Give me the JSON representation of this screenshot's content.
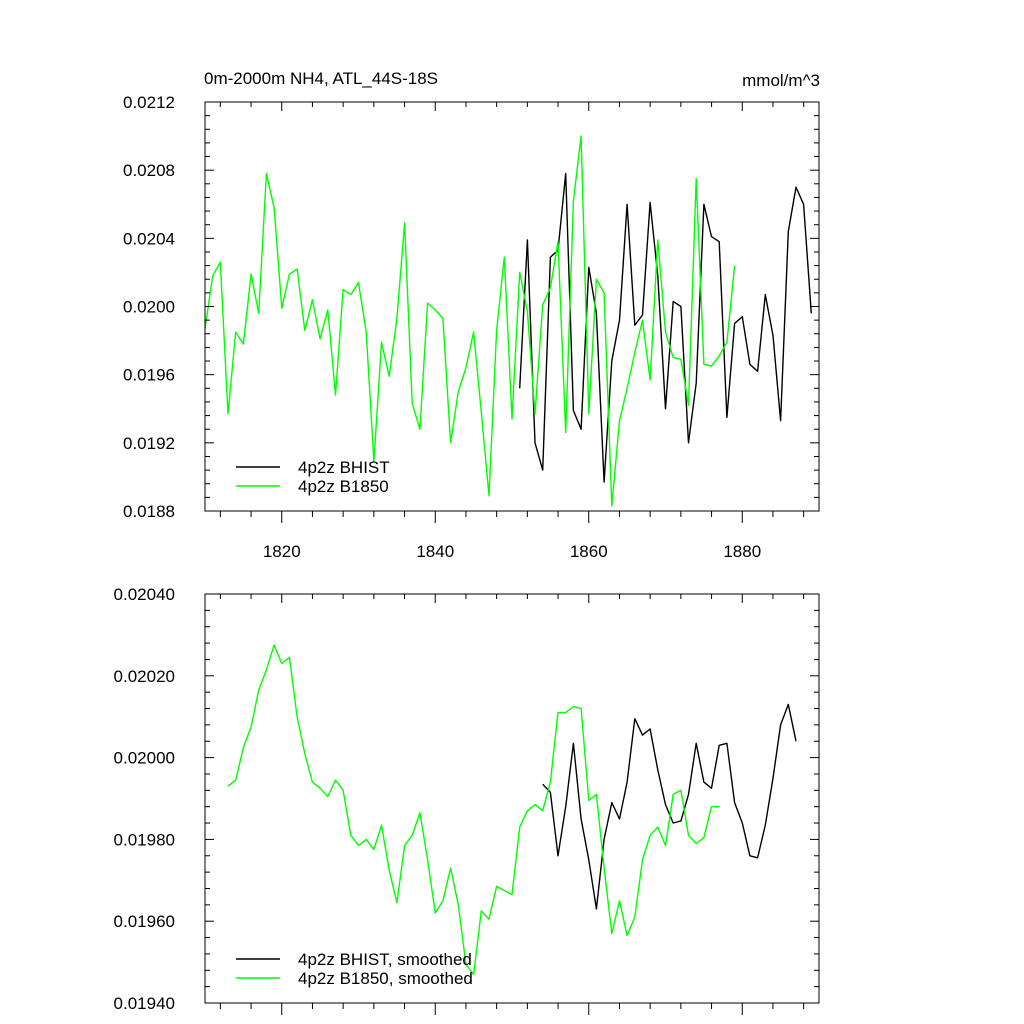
{
  "colors": {
    "bhist": "#000000",
    "b1850": "#00ff00",
    "frame": "#000000"
  },
  "chart_data": [
    {
      "type": "line",
      "title": "0m-2000m NH4, ATL_44S-18S",
      "units": "mmol/m^3",
      "xlim": [
        1810,
        1890
      ],
      "ylim": [
        0.0188,
        0.0212
      ],
      "xticks": [
        1820,
        1840,
        1860,
        1880
      ],
      "xtick_labels": [
        "1820",
        "1840",
        "1860",
        "1880"
      ],
      "yticks": [
        0.0188,
        0.0192,
        0.0196,
        0.02,
        0.0204,
        0.0208,
        0.0212
      ],
      "ytick_labels": [
        "0.0188",
        "0.0192",
        "0.0196",
        "0.0200",
        "0.0204",
        "0.0208",
        "0.0212"
      ],
      "legend_position": "bottom-left",
      "series": [
        {
          "name": "4p2z BHIST",
          "color": "#000000",
          "x": [
            1851,
            1852,
            1853,
            1854,
            1855,
            1856,
            1857,
            1858,
            1859,
            1860,
            1861,
            1862,
            1863,
            1864,
            1865,
            1866,
            1867,
            1868,
            1869,
            1870,
            1871,
            1872,
            1873,
            1874,
            1875,
            1876,
            1877,
            1878,
            1879,
            1880,
            1881,
            1882,
            1883,
            1884,
            1885,
            1886,
            1887,
            1888,
            1889
          ],
          "y": [
            0.01952,
            0.02039,
            0.0192,
            0.01904,
            0.02029,
            0.02033,
            0.02078,
            0.01939,
            0.01928,
            0.02023,
            0.01996,
            0.01897,
            0.01968,
            0.01992,
            0.0206,
            0.01989,
            0.01995,
            0.02061,
            0.02018,
            0.0194,
            0.02003,
            0.02,
            0.0192,
            0.01955,
            0.0206,
            0.02041,
            0.02038,
            0.01935,
            0.0199,
            0.01994,
            0.01966,
            0.01962,
            0.02007,
            0.01983,
            0.01933,
            0.02044,
            0.0207,
            0.0206,
            0.01996
          ]
        },
        {
          "name": "4p2z B1850",
          "color": "#00ff00",
          "x": [
            1810,
            1811,
            1812,
            1813,
            1814,
            1815,
            1816,
            1817,
            1818,
            1819,
            1820,
            1821,
            1822,
            1823,
            1824,
            1825,
            1826,
            1827,
            1828,
            1829,
            1830,
            1831,
            1832,
            1833,
            1834,
            1835,
            1836,
            1837,
            1838,
            1839,
            1840,
            1841,
            1842,
            1843,
            1844,
            1845,
            1846,
            1847,
            1848,
            1849,
            1850,
            1851,
            1852,
            1853,
            1854,
            1855,
            1856,
            1857,
            1858,
            1859,
            1860,
            1861,
            1862,
            1863,
            1864,
            1865,
            1866,
            1867,
            1868,
            1869,
            1870,
            1871,
            1872,
            1873,
            1874,
            1875,
            1876,
            1877,
            1878,
            1879
          ],
          "y": [
            0.01987,
            0.02018,
            0.02026,
            0.01937,
            0.01985,
            0.01978,
            0.02019,
            0.01996,
            0.02078,
            0.02058,
            0.01999,
            0.02019,
            0.02022,
            0.01986,
            0.02004,
            0.01981,
            0.01998,
            0.01948,
            0.0201,
            0.02007,
            0.02014,
            0.01985,
            0.01909,
            0.01979,
            0.01959,
            0.01993,
            0.02049,
            0.01943,
            0.01928,
            0.02002,
            0.01998,
            0.01993,
            0.0192,
            0.0195,
            0.01964,
            0.01985,
            0.01938,
            0.01889,
            0.01986,
            0.02029,
            0.01934,
            0.0202,
            0.01997,
            0.01937,
            0.02001,
            0.02011,
            0.02038,
            0.01926,
            0.02062,
            0.021,
            0.01937,
            0.02016,
            0.02008,
            0.01883,
            0.01933,
            0.01952,
            0.01973,
            0.01992,
            0.01957,
            0.02039,
            0.01985,
            0.0197,
            0.01969,
            0.01942,
            0.02075,
            0.01966,
            0.01965,
            0.01971,
            0.01979,
            0.02024
          ]
        }
      ]
    },
    {
      "type": "line",
      "title": "",
      "xlim": [
        1810,
        1890
      ],
      "ylim": [
        0.0194,
        0.0204
      ],
      "xticks": [
        1820,
        1840,
        1860,
        1880
      ],
      "xtick_labels": [],
      "yticks": [
        0.0194,
        0.0196,
        0.0198,
        0.02,
        0.0202,
        0.0204
      ],
      "ytick_labels": [
        "0.01940",
        "0.01960",
        "0.01980",
        "0.02000",
        "0.02020",
        "0.02040"
      ],
      "legend_position": "bottom-left",
      "series": [
        {
          "name": "4p2z BHIST, smoothed",
          "color": "#000000",
          "x": [
            1854,
            1855,
            1856,
            1857,
            1858,
            1859,
            1860,
            1861,
            1862,
            1863,
            1864,
            1865,
            1866,
            1867,
            1868,
            1869,
            1870,
            1871,
            1872,
            1873,
            1874,
            1875,
            1876,
            1877,
            1878,
            1879,
            1880,
            1881,
            1882,
            1883,
            1884,
            1885,
            1886,
            1887
          ],
          "y": [
            0.019935,
            0.019915,
            0.01976,
            0.01988,
            0.020035,
            0.01985,
            0.01975,
            0.01963,
            0.0198,
            0.01989,
            0.01985,
            0.01994,
            0.020095,
            0.020055,
            0.02007,
            0.01997,
            0.019885,
            0.01984,
            0.019845,
            0.01991,
            0.020035,
            0.01994,
            0.019925,
            0.02003,
            0.020035,
            0.01989,
            0.01984,
            0.01976,
            0.019755,
            0.019835,
            0.01995,
            0.02008,
            0.02013,
            0.02004
          ]
        },
        {
          "name": "4p2z B1850, smoothed",
          "color": "#00ff00",
          "x": [
            1813,
            1814,
            1815,
            1816,
            1817,
            1818,
            1819,
            1820,
            1821,
            1822,
            1823,
            1824,
            1825,
            1826,
            1827,
            1828,
            1829,
            1830,
            1831,
            1832,
            1833,
            1834,
            1835,
            1836,
            1837,
            1838,
            1839,
            1840,
            1841,
            1842,
            1843,
            1844,
            1845,
            1846,
            1847,
            1848,
            1849,
            1850,
            1851,
            1852,
            1853,
            1854,
            1855,
            1856,
            1857,
            1858,
            1859,
            1860,
            1861,
            1862,
            1863,
            1864,
            1865,
            1866,
            1867,
            1868,
            1869,
            1870,
            1871,
            1872,
            1873,
            1874,
            1875,
            1876,
            1877
          ],
          "y": [
            0.01993,
            0.019945,
            0.020025,
            0.020075,
            0.020165,
            0.020215,
            0.020275,
            0.02023,
            0.020245,
            0.0201,
            0.02001,
            0.01994,
            0.019925,
            0.019905,
            0.019945,
            0.01992,
            0.01981,
            0.019785,
            0.0198,
            0.019775,
            0.019835,
            0.019725,
            0.019645,
            0.019785,
            0.01981,
            0.019865,
            0.01975,
            0.01962,
            0.01965,
            0.01973,
            0.01964,
            0.019495,
            0.01947,
            0.019625,
            0.019605,
            0.019685,
            0.019675,
            0.019665,
            0.01983,
            0.01987,
            0.019885,
            0.01987,
            0.01994,
            0.02011,
            0.02011,
            0.020125,
            0.02012,
            0.019895,
            0.01991,
            0.01973,
            0.01957,
            0.01965,
            0.019565,
            0.01961,
            0.01975,
            0.01981,
            0.01983,
            0.019785,
            0.01991,
            0.01992,
            0.01981,
            0.01979,
            0.019805,
            0.01988,
            0.01988
          ]
        }
      ]
    }
  ]
}
